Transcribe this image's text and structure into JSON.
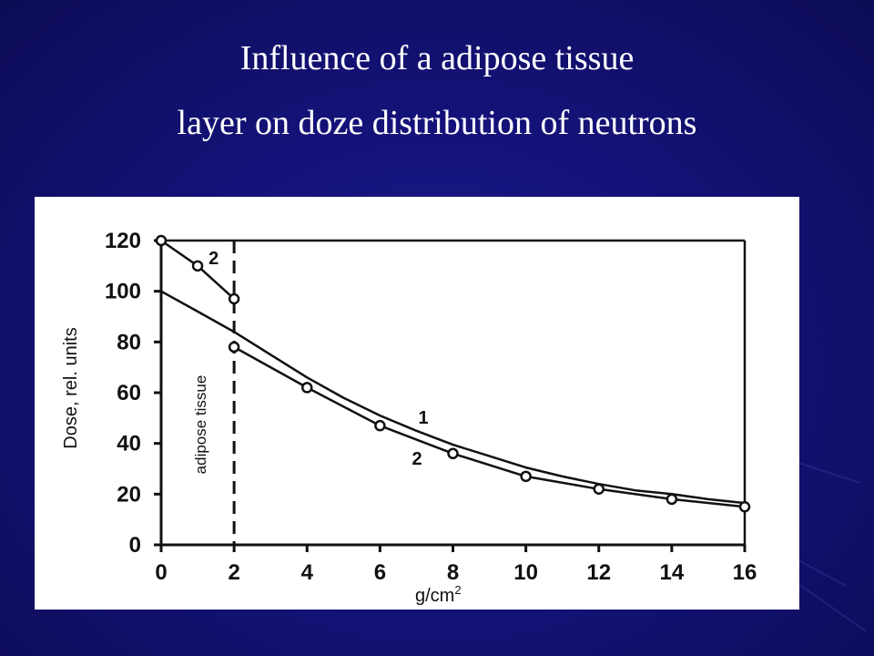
{
  "slide": {
    "title_line1": "Influence of a adipose tissue",
    "title_line2": "layer on doze distribution of neutrons",
    "background_color": "#15137a",
    "text_color": "#ffffff"
  },
  "chart_data": {
    "type": "line",
    "title": "",
    "xlabel": "g/cm",
    "xlabel_superscript": "2",
    "ylabel": "Dose, rel. units",
    "xlim": [
      0,
      16
    ],
    "ylim": [
      0,
      120
    ],
    "xticks": [
      0,
      2,
      4,
      6,
      8,
      10,
      12,
      14,
      16
    ],
    "yticks": [
      0,
      20,
      40,
      60,
      80,
      100,
      120
    ],
    "grid": false,
    "legend": "none",
    "region_label": "adipose tissue",
    "region_boundary_x": 2,
    "series": [
      {
        "name": "1",
        "markers": false,
        "x": [
          0,
          1,
          2,
          3,
          4,
          5,
          6,
          7,
          8,
          9,
          10,
          11,
          12,
          13,
          14,
          15,
          16
        ],
        "values": [
          100,
          92,
          84,
          75,
          66,
          58,
          51,
          45,
          39.5,
          35,
          30.5,
          27,
          24,
          21.5,
          20,
          18,
          16.5
        ]
      },
      {
        "name": "2",
        "markers": true,
        "x": [
          0,
          1,
          2
        ],
        "values": [
          120,
          110,
          97
        ]
      },
      {
        "name": "2",
        "markers": true,
        "x": [
          2,
          4,
          6,
          8,
          10,
          12,
          14,
          16
        ],
        "values": [
          78,
          62,
          47,
          36,
          27,
          22,
          18,
          15
        ]
      }
    ]
  }
}
